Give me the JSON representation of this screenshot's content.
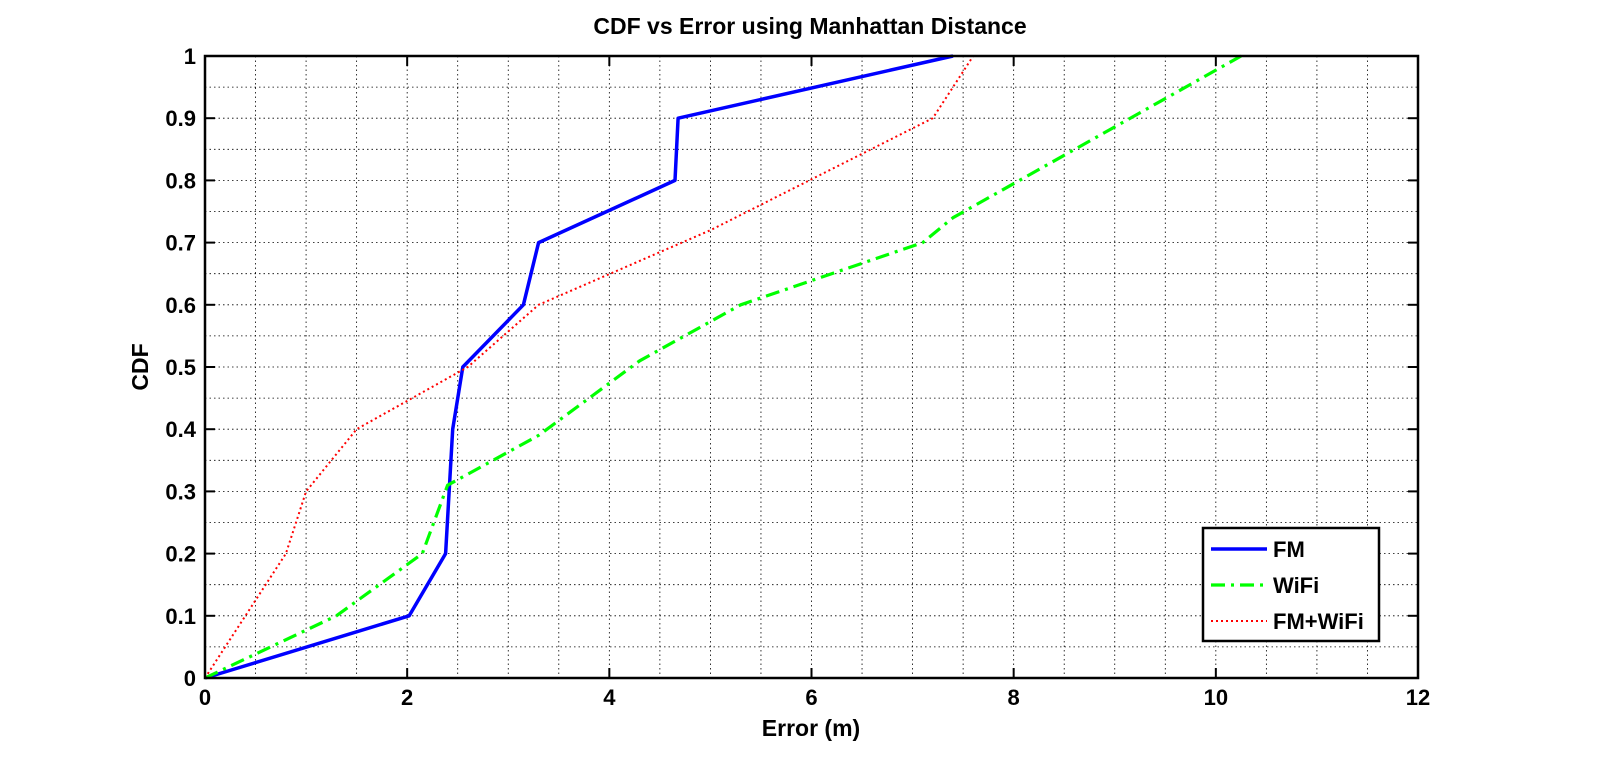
{
  "chart_data": {
    "type": "line",
    "title": "CDF vs Error using Manhattan Distance",
    "xlabel": "Error (m)",
    "ylabel": "CDF",
    "xlim": [
      0,
      12
    ],
    "ylim": [
      0,
      1
    ],
    "x_ticks": [
      "0",
      "2",
      "4",
      "6",
      "8",
      "10",
      "12"
    ],
    "y_ticks": [
      "0",
      "0.1",
      "0.2",
      "0.3",
      "0.4",
      "0.5",
      "0.6",
      "0.7",
      "0.8",
      "0.9",
      "1"
    ],
    "grid": true,
    "minor_grid": true,
    "legend_position": "bottom-right",
    "series": [
      {
        "name": "FM",
        "color": "#0000ff",
        "style": "solid",
        "x": [
          0,
          2.02,
          2.38,
          2.45,
          2.55,
          3.15,
          3.3,
          4.65,
          4.68,
          7.4
        ],
        "y": [
          0,
          0.1,
          0.2,
          0.4,
          0.5,
          0.6,
          0.7,
          0.8,
          0.9,
          1.0
        ]
      },
      {
        "name": "WiFi",
        "color": "#00ff00",
        "style": "dashdot",
        "x": [
          0,
          1.3,
          2.15,
          2.4,
          3.3,
          4.3,
          5.3,
          7.1,
          7.4,
          10.25
        ],
        "y": [
          0,
          0.1,
          0.2,
          0.31,
          0.39,
          0.51,
          0.6,
          0.7,
          0.74,
          1.0
        ]
      },
      {
        "name": "FM+WiFi",
        "color": "#ff0000",
        "style": "dotted",
        "x": [
          0,
          0.4,
          0.8,
          1.0,
          1.5,
          2.6,
          3.3,
          5.0,
          7.2,
          7.6
        ],
        "y": [
          0,
          0.1,
          0.2,
          0.3,
          0.4,
          0.5,
          0.6,
          0.72,
          0.9,
          1.0
        ]
      }
    ]
  }
}
